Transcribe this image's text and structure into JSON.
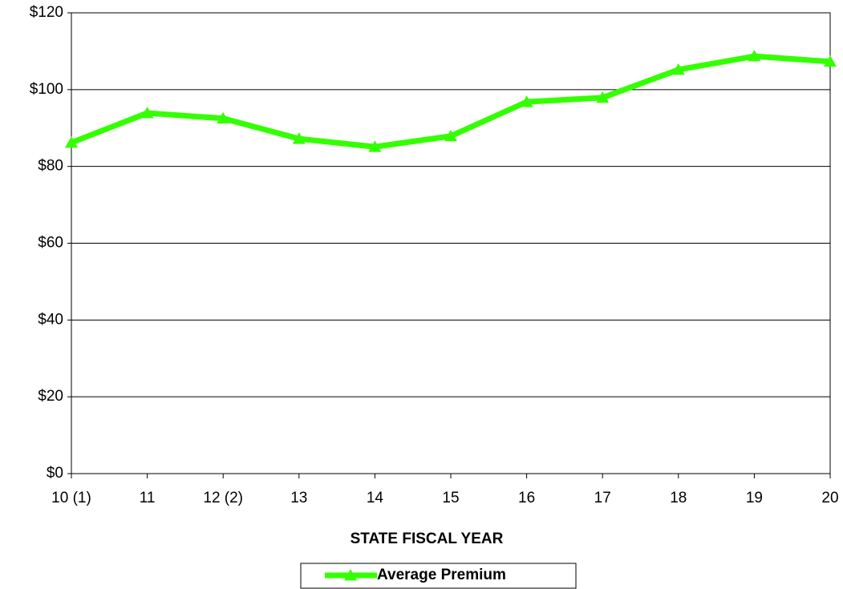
{
  "chart_data": {
    "type": "line",
    "x_label": "STATE FISCAL YEAR",
    "categories": [
      "10 (1)",
      "11",
      "12 (2)",
      "13",
      "14",
      "15",
      "16",
      "17",
      "18",
      "19",
      "20"
    ],
    "series": [
      {
        "name": "Average Premium",
        "color": "#33ff00",
        "values": [
          86.2,
          93.9,
          92.5,
          87.2,
          85.1,
          87.9,
          96.8,
          97.9,
          105.2,
          108.7,
          107.3
        ]
      }
    ],
    "ylim": [
      0,
      120
    ],
    "yticks": [
      {
        "value": 0,
        "label": "$0"
      },
      {
        "value": 20,
        "label": "$20"
      },
      {
        "value": 40,
        "label": "$40"
      },
      {
        "value": 60,
        "label": "$60"
      },
      {
        "value": 80,
        "label": "$80"
      },
      {
        "value": 100,
        "label": "$100"
      },
      {
        "value": 120,
        "label": "$120"
      }
    ],
    "grid": true,
    "legend": "bottom"
  }
}
